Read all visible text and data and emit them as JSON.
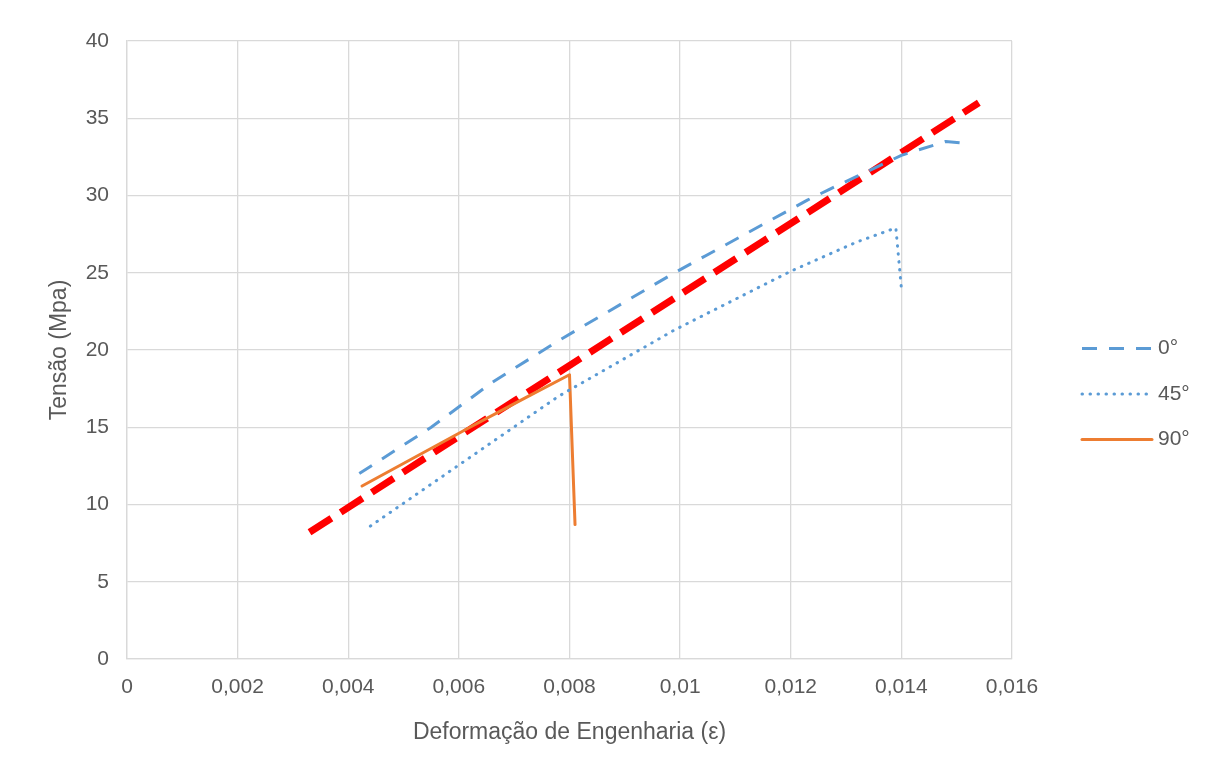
{
  "chart_data": {
    "type": "line",
    "xlabel": "Deformação de Engenharia (ε)",
    "ylabel": "Tensão (Mpa)",
    "xlim": [
      0,
      0.016
    ],
    "xticks": [
      0,
      {
        "value": 0.002,
        "label": "0,002"
      },
      {
        "value": 0.004,
        "label": "0,004"
      },
      {
        "value": 0.006,
        "label": "0,006"
      },
      {
        "value": 0.008,
        "label": "0,008"
      },
      {
        "value": 0.01,
        "label": "0,01"
      },
      {
        "value": 0.012,
        "label": "0,012"
      },
      {
        "value": 0.014,
        "label": "0,014"
      },
      {
        "value": 0.016,
        "label": "0,016"
      }
    ],
    "ylim": [
      0,
      40
    ],
    "yticks": [
      0,
      5,
      10,
      15,
      20,
      25,
      30,
      35,
      40
    ],
    "grid": true,
    "legend": "right",
    "marker": "none",
    "series": [
      {
        "name": "0°",
        "color": "#5b9bd5",
        "line_style": "dashed",
        "x": [
          0.0042,
          0.0055,
          0.0066,
          0.0078,
          0.0099,
          0.0123,
          0.0127,
          0.014,
          0.0148,
          0.0151
        ],
        "values": [
          12.0,
          15.0,
          17.9,
          20.6,
          25.0,
          29.7,
          30.4,
          32.6,
          33.5,
          33.4
        ]
      },
      {
        "name": "45°",
        "color": "#5b9bd5",
        "line_style": "dotted",
        "x": [
          0.0044,
          0.0078,
          0.0099,
          0.012,
          0.0132,
          0.0139,
          0.014
        ],
        "values": [
          8.6,
          17.0,
          21.3,
          25.1,
          27.0,
          27.9,
          24.0
        ]
      },
      {
        "name": "90°",
        "color": "#ed7d31",
        "line_style": "solid",
        "x": [
          0.00425,
          0.0062,
          0.0072,
          0.008,
          0.0081
        ],
        "values": [
          11.2,
          15.0,
          16.9,
          18.4,
          8.7
        ]
      },
      {
        "type": "line",
        "color": "#ff0000",
        "line_style": "dashed",
        "x": [
          0.0033,
          0.0154
        ],
        "values": [
          8.2,
          36.0
        ]
      }
    ]
  }
}
